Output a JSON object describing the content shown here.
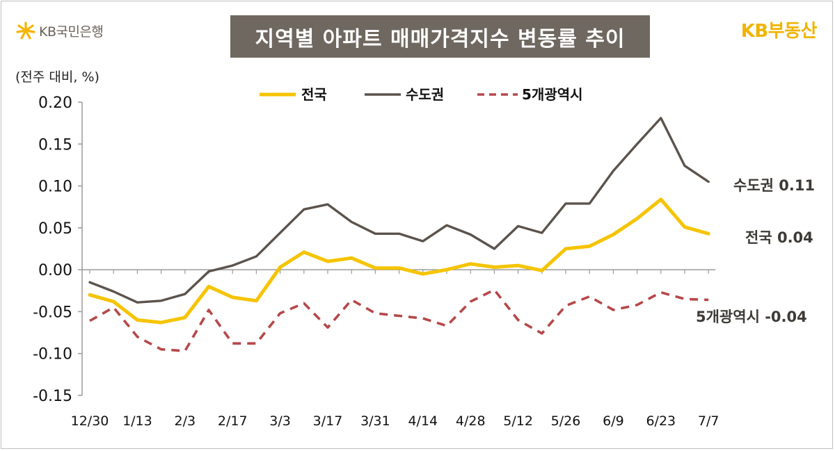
{
  "header": {
    "bank_name": "KB국민은행",
    "title": "지역별 아파트 매매가격지수 변동률 추이",
    "brand": "KB부동산"
  },
  "colors": {
    "national": "#f5c400",
    "capital": "#5b534c",
    "metro": "#b5484a",
    "title_bg": "#6f6860",
    "brand": "#f0b400"
  },
  "chart_data": {
    "type": "line",
    "unit_label": "(전주 대비, %)",
    "ylim": [
      -0.15,
      0.2
    ],
    "yticks": [
      0.2,
      0.15,
      0.1,
      0.05,
      0.0,
      -0.05,
      -0.1,
      -0.15
    ],
    "ytick_labels": [
      "0.20",
      "0.15",
      "0.10",
      "0.05",
      "0.00",
      "-0.05",
      "-0.10",
      "-0.15"
    ],
    "x": [
      "12/30",
      "1/6",
      "1/13",
      "1/20",
      "2/3",
      "2/10",
      "2/17",
      "2/24",
      "3/3",
      "3/10",
      "3/17",
      "3/24",
      "3/31",
      "4/7",
      "4/14",
      "4/21",
      "4/28",
      "5/5",
      "5/12",
      "5/19",
      "5/26",
      "6/2",
      "6/9",
      "6/16",
      "6/23",
      "6/30",
      "7/7"
    ],
    "xtick_labels": [
      "12/30",
      "1/13",
      "2/3",
      "2/17",
      "3/3",
      "3/17",
      "3/31",
      "4/14",
      "4/28",
      "5/12",
      "5/26",
      "6/9",
      "6/23",
      "7/7"
    ],
    "legend_position": "top-center",
    "series": [
      {
        "key": "national",
        "name": "전국",
        "style": "solid",
        "values": [
          -0.03,
          -0.038,
          -0.06,
          -0.063,
          -0.057,
          -0.02,
          -0.033,
          -0.037,
          0.003,
          0.021,
          0.01,
          0.014,
          0.002,
          0.002,
          -0.005,
          0.0,
          0.007,
          0.003,
          0.005,
          -0.001,
          0.025,
          0.028,
          0.042,
          0.061,
          0.084,
          0.051,
          0.043
        ],
        "end_label": "전국 0.04"
      },
      {
        "key": "capital",
        "name": "수도권",
        "style": "solid",
        "values": [
          -0.015,
          -0.026,
          -0.039,
          -0.037,
          -0.029,
          -0.002,
          0.005,
          0.016,
          0.044,
          0.072,
          0.078,
          0.057,
          0.043,
          0.043,
          0.034,
          0.053,
          0.042,
          0.025,
          0.052,
          0.044,
          0.079,
          0.079,
          0.118,
          0.15,
          0.181,
          0.124,
          0.105
        ],
        "end_label": "수도권 0.11"
      },
      {
        "key": "metro",
        "name": "5개광역시",
        "style": "dashed",
        "values": [
          -0.061,
          -0.045,
          -0.08,
          -0.095,
          -0.097,
          -0.048,
          -0.088,
          -0.088,
          -0.052,
          -0.04,
          -0.069,
          -0.036,
          -0.052,
          -0.055,
          -0.058,
          -0.067,
          -0.038,
          -0.024,
          -0.06,
          -0.076,
          -0.043,
          -0.032,
          -0.048,
          -0.042,
          -0.027,
          -0.035,
          -0.036
        ],
        "end_label": "5개광역시 -0.04"
      }
    ]
  }
}
